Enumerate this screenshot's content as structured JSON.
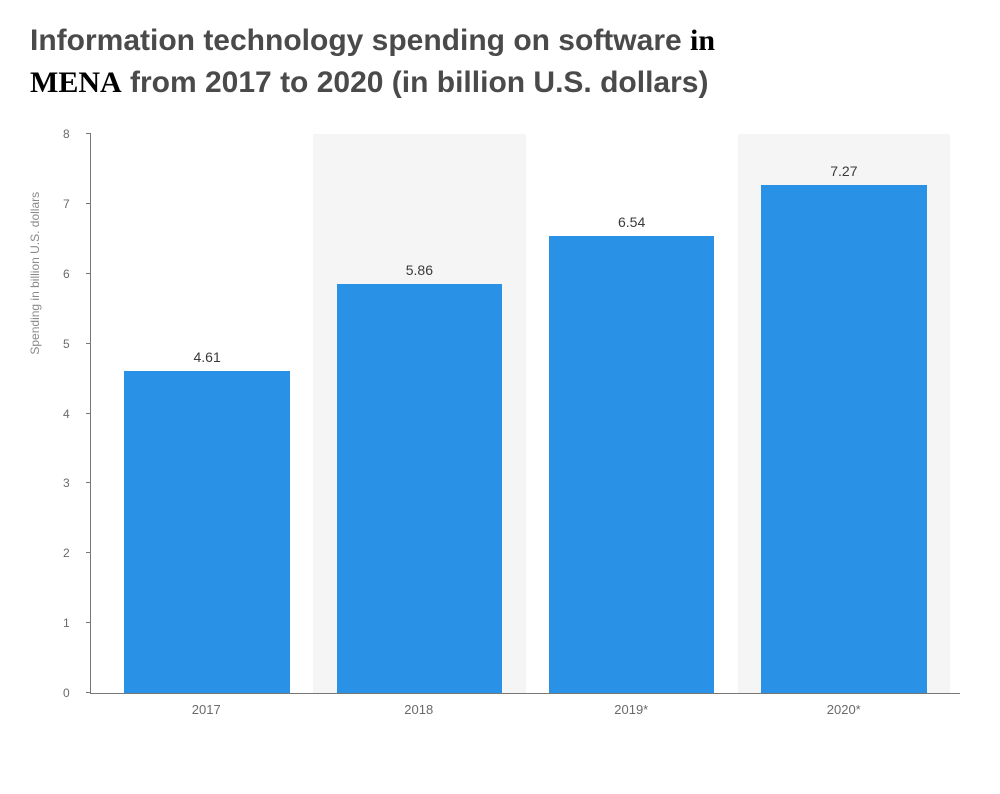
{
  "title": {
    "line1_pre": "Information technology spending on software ",
    "line1_in": "in",
    "line2_mena": "MENA",
    "line2_rest": "   from 2017 to 2020 (in billion U.S. dollars)",
    "color": "#4a4a4a",
    "fontsize": 30
  },
  "chart": {
    "type": "bar",
    "y_axis_label": "Spending in billion U.S. dollars",
    "y_axis_label_color": "#8a8a8a",
    "y_axis_label_fontsize": 12,
    "ylim": [
      0,
      8
    ],
    "ytick_step": 1,
    "yticks": [
      0,
      1,
      2,
      3,
      4,
      5,
      6,
      7,
      8
    ],
    "categories": [
      "2017",
      "2018",
      "2019*",
      "2020*"
    ],
    "values": [
      4.61,
      5.86,
      6.54,
      7.27
    ],
    "value_labels": [
      "4.61",
      "5.86",
      "6.54",
      "7.27"
    ],
    "bar_color": "#2a92e6",
    "bar_width": 0.78,
    "shaded_slots": [
      false,
      true,
      false,
      true
    ],
    "shaded_bg": "#f5f5f5",
    "plot_bg": "#ffffff",
    "axis_color": "#777777",
    "tick_label_color": "#6a6a6a",
    "tick_label_fontsize": 12,
    "value_label_color": "#3a3a3a",
    "value_label_fontsize": 14
  }
}
